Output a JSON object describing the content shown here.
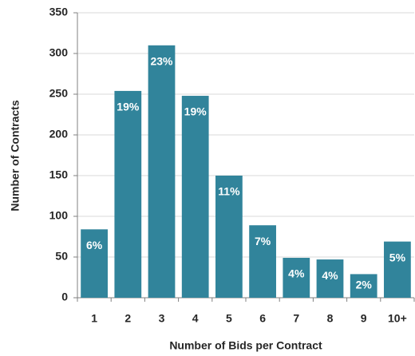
{
  "chart_data": {
    "type": "bar",
    "x_label": "Number of Bids per Contract",
    "y_label": "Number of Contracts",
    "categories": [
      "1",
      "2",
      "3",
      "4",
      "5",
      "6",
      "7",
      "8",
      "9",
      "10+"
    ],
    "values": [
      84,
      254,
      310,
      248,
      150,
      89,
      49,
      47,
      29,
      69
    ],
    "bar_labels": [
      "6%",
      "19%",
      "23%",
      "19%",
      "11%",
      "7%",
      "4%",
      "4%",
      "2%",
      "5%"
    ],
    "color": "#31849b",
    "ylim": [
      0,
      350
    ],
    "yticks": [
      0,
      50,
      100,
      150,
      200,
      250,
      300,
      350
    ],
    "grid": true
  }
}
